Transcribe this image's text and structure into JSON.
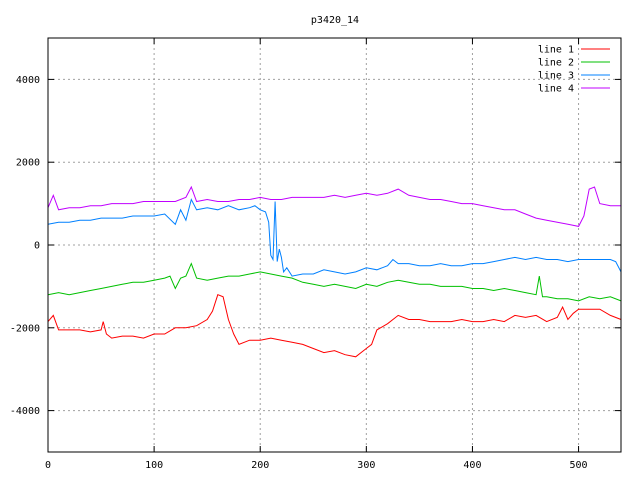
{
  "chart_data": {
    "type": "line",
    "title": "p3420_14",
    "xlabel": "",
    "ylabel": "",
    "xlim": [
      0,
      540
    ],
    "ylim": [
      -5000,
      5000
    ],
    "xticks": [
      0,
      100,
      200,
      300,
      400,
      500
    ],
    "yticks": [
      4000,
      2000,
      0,
      -2000,
      -4000
    ],
    "grid": true,
    "legend_position": "top-right",
    "series": [
      {
        "name": "line 1",
        "color": "#ff0000",
        "x": [
          0,
          5,
          10,
          20,
          30,
          40,
          50,
          52,
          55,
          60,
          70,
          80,
          90,
          100,
          110,
          120,
          130,
          140,
          150,
          155,
          160,
          165,
          170,
          175,
          180,
          190,
          200,
          210,
          220,
          230,
          240,
          250,
          260,
          270,
          280,
          290,
          300,
          305,
          310,
          320,
          330,
          340,
          350,
          360,
          370,
          380,
          390,
          400,
          410,
          420,
          430,
          440,
          450,
          460,
          470,
          480,
          485,
          490,
          495,
          500,
          510,
          520,
          530,
          540
        ],
        "y": [
          -1850,
          -1700,
          -2050,
          -2050,
          -2050,
          -2100,
          -2050,
          -1850,
          -2150,
          -2250,
          -2200,
          -2200,
          -2250,
          -2150,
          -2150,
          -2000,
          -2000,
          -1950,
          -1800,
          -1600,
          -1200,
          -1250,
          -1800,
          -2150,
          -2400,
          -2300,
          -2300,
          -2250,
          -2300,
          -2350,
          -2400,
          -2500,
          -2600,
          -2550,
          -2650,
          -2700,
          -2500,
          -2400,
          -2050,
          -1900,
          -1700,
          -1800,
          -1800,
          -1850,
          -1850,
          -1850,
          -1800,
          -1850,
          -1850,
          -1800,
          -1850,
          -1700,
          -1750,
          -1700,
          -1850,
          -1750,
          -1500,
          -1800,
          -1650,
          -1550,
          -1550,
          -1550,
          -1700,
          -1800
        ]
      },
      {
        "name": "line 2",
        "color": "#00c000",
        "x": [
          0,
          10,
          20,
          30,
          40,
          50,
          60,
          70,
          80,
          90,
          100,
          110,
          115,
          120,
          125,
          130,
          135,
          140,
          150,
          160,
          170,
          180,
          190,
          200,
          210,
          220,
          230,
          240,
          250,
          260,
          270,
          280,
          290,
          300,
          310,
          320,
          330,
          340,
          350,
          360,
          370,
          380,
          390,
          400,
          410,
          420,
          430,
          440,
          450,
          460,
          463,
          466,
          470,
          480,
          490,
          500,
          510,
          520,
          530,
          540
        ],
        "y": [
          -1200,
          -1150,
          -1200,
          -1150,
          -1100,
          -1050,
          -1000,
          -950,
          -900,
          -900,
          -850,
          -800,
          -750,
          -1050,
          -800,
          -750,
          -450,
          -800,
          -850,
          -800,
          -750,
          -750,
          -700,
          -650,
          -700,
          -750,
          -800,
          -900,
          -950,
          -1000,
          -950,
          -1000,
          -1050,
          -950,
          -1000,
          -900,
          -850,
          -900,
          -950,
          -950,
          -1000,
          -1000,
          -1000,
          -1050,
          -1050,
          -1100,
          -1050,
          -1100,
          -1150,
          -1200,
          -750,
          -1250,
          -1250,
          -1300,
          -1300,
          -1350,
          -1250,
          -1300,
          -1250,
          -1350
        ]
      },
      {
        "name": "line 3",
        "color": "#0080ff",
        "x": [
          0,
          10,
          20,
          30,
          40,
          50,
          60,
          70,
          80,
          90,
          100,
          110,
          120,
          125,
          130,
          135,
          140,
          150,
          160,
          170,
          180,
          190,
          195,
          200,
          205,
          208,
          210,
          212,
          214,
          216,
          218,
          220,
          222,
          225,
          230,
          240,
          250,
          260,
          270,
          280,
          290,
          300,
          310,
          320,
          325,
          330,
          340,
          350,
          360,
          370,
          380,
          390,
          400,
          410,
          420,
          430,
          440,
          450,
          460,
          470,
          480,
          490,
          500,
          510,
          520,
          530,
          535,
          540
        ],
        "y": [
          500,
          550,
          550,
          600,
          600,
          650,
          650,
          650,
          700,
          700,
          700,
          750,
          500,
          850,
          600,
          1100,
          850,
          900,
          850,
          950,
          850,
          900,
          950,
          850,
          800,
          550,
          -250,
          -350,
          1050,
          -400,
          -100,
          -300,
          -650,
          -550,
          -750,
          -700,
          -700,
          -600,
          -650,
          -700,
          -650,
          -550,
          -600,
          -500,
          -350,
          -450,
          -450,
          -500,
          -500,
          -450,
          -500,
          -500,
          -450,
          -450,
          -400,
          -350,
          -300,
          -350,
          -300,
          -350,
          -350,
          -400,
          -350,
          -350,
          -350,
          -350,
          -400,
          -650
        ]
      },
      {
        "name": "line 4",
        "color": "#c000ff",
        "x": [
          0,
          5,
          10,
          20,
          30,
          40,
          50,
          60,
          70,
          80,
          90,
          100,
          110,
          120,
          130,
          135,
          140,
          150,
          160,
          170,
          180,
          190,
          200,
          210,
          220,
          230,
          240,
          250,
          260,
          270,
          280,
          290,
          300,
          310,
          320,
          330,
          340,
          350,
          360,
          370,
          380,
          390,
          400,
          410,
          420,
          430,
          440,
          450,
          460,
          470,
          480,
          490,
          500,
          505,
          510,
          515,
          520,
          530,
          540
        ],
        "y": [
          900,
          1200,
          850,
          900,
          900,
          950,
          950,
          1000,
          1000,
          1000,
          1050,
          1050,
          1050,
          1050,
          1150,
          1400,
          1050,
          1100,
          1050,
          1050,
          1100,
          1100,
          1150,
          1100,
          1100,
          1150,
          1150,
          1150,
          1150,
          1200,
          1150,
          1200,
          1250,
          1200,
          1250,
          1350,
          1200,
          1150,
          1100,
          1100,
          1050,
          1000,
          1000,
          950,
          900,
          850,
          850,
          750,
          650,
          600,
          550,
          500,
          450,
          700,
          1350,
          1400,
          1000,
          950,
          950
        ]
      }
    ]
  }
}
